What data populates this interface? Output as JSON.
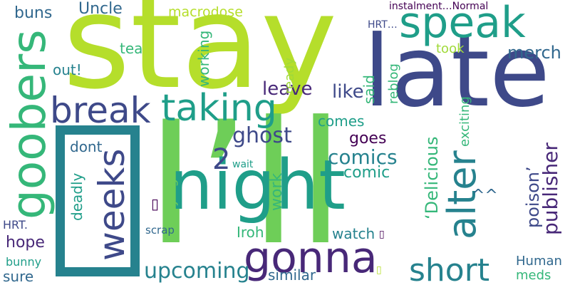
{
  "colors": {
    "lime": "#b5de2b",
    "green": "#6ece58",
    "teal_green": "#35b779",
    "teal": "#1f9e89",
    "blue_teal": "#26828e",
    "steel": "#31688e",
    "indigo": "#3e4989",
    "purple": "#482878",
    "dark_purple": "#440154",
    "yellow_green": "#a0da39"
  },
  "words": {
    "stay": "stay",
    "late": "late",
    "i_ll": "I’ll",
    "night": "night",
    "speak": "speak",
    "goobers": "goobers",
    "break": "break",
    "taking": "taking",
    "gonna": "gonna",
    "weeks": "weeks",
    "alter": "alter",
    "short": "short",
    "upcoming": "upcoming",
    "ghost": "ghost",
    "comics": "comics",
    "comic": "comic",
    "goes": "goes",
    "merch": "merch",
    "publisher": "publisher",
    "delicious": "‘Delicious",
    "poison": "poison’",
    "like": "like",
    "leave": "leave",
    "uncle": "Uncle",
    "buns": "buns",
    "tea": "tea",
    "out": "out!",
    "macrodose": "macrodose",
    "working": "working",
    "took": "took",
    "ready": "ready",
    "reblog": "reblog",
    "said": "said",
    "exciting": "exciting",
    "comes": "comes",
    "two": "2",
    "wait": "wait",
    "work": "work",
    "dont": "dont",
    "deadly": "deadly",
    "saying": "saying",
    "iroh": "Iroh",
    "watch": "watch",
    "hope": "hope",
    "hrt_left": "HRT.",
    "hrt_top": "HRT…",
    "bunny": "bunny",
    "sure": "sure",
    "scrap": "scrap",
    "similar": "similar",
    "human": "Human",
    "meds": "meds",
    "instalment": "instalment…Normal",
    "caret": "^^",
    "glyph_a": "▯",
    "glyph_b": "▯",
    "glyph_c": "▯"
  }
}
